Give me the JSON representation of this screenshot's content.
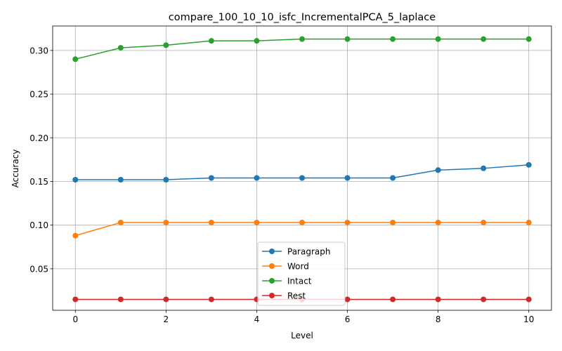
{
  "chart_data": {
    "type": "line",
    "title": "compare_100_10_10_isfc_IncrementalPCA_5_laplace",
    "xlabel": "Level",
    "ylabel": "Accuracy",
    "x": [
      0,
      1,
      2,
      3,
      4,
      5,
      6,
      7,
      8,
      9,
      10
    ],
    "xlim": [
      -0.5,
      10.5
    ],
    "ylim": [
      0.0025,
      0.328
    ],
    "xticks": [
      0,
      2,
      4,
      6,
      8,
      10
    ],
    "yticks": [
      0.05,
      0.1,
      0.15,
      0.2,
      0.25,
      0.3
    ],
    "ytick_labels": [
      "0.05",
      "0.10",
      "0.15",
      "0.20",
      "0.25",
      "0.30"
    ],
    "grid": true,
    "legend_position": "lower center",
    "series": [
      {
        "name": "Paragraph",
        "color": "#1f77b4",
        "values": [
          0.152,
          0.152,
          0.152,
          0.154,
          0.154,
          0.154,
          0.154,
          0.154,
          0.163,
          0.165,
          0.169
        ]
      },
      {
        "name": "Word",
        "color": "#ff7f0e",
        "values": [
          0.088,
          0.103,
          0.103,
          0.103,
          0.103,
          0.103,
          0.103,
          0.103,
          0.103,
          0.103,
          0.103
        ]
      },
      {
        "name": "Intact",
        "color": "#2ca02c",
        "values": [
          0.29,
          0.303,
          0.306,
          0.311,
          0.311,
          0.313,
          0.313,
          0.313,
          0.313,
          0.313,
          0.313
        ]
      },
      {
        "name": "Rest",
        "color": "#d62728",
        "values": [
          0.015,
          0.015,
          0.015,
          0.015,
          0.015,
          0.015,
          0.015,
          0.015,
          0.015,
          0.015,
          0.015
        ]
      }
    ]
  }
}
